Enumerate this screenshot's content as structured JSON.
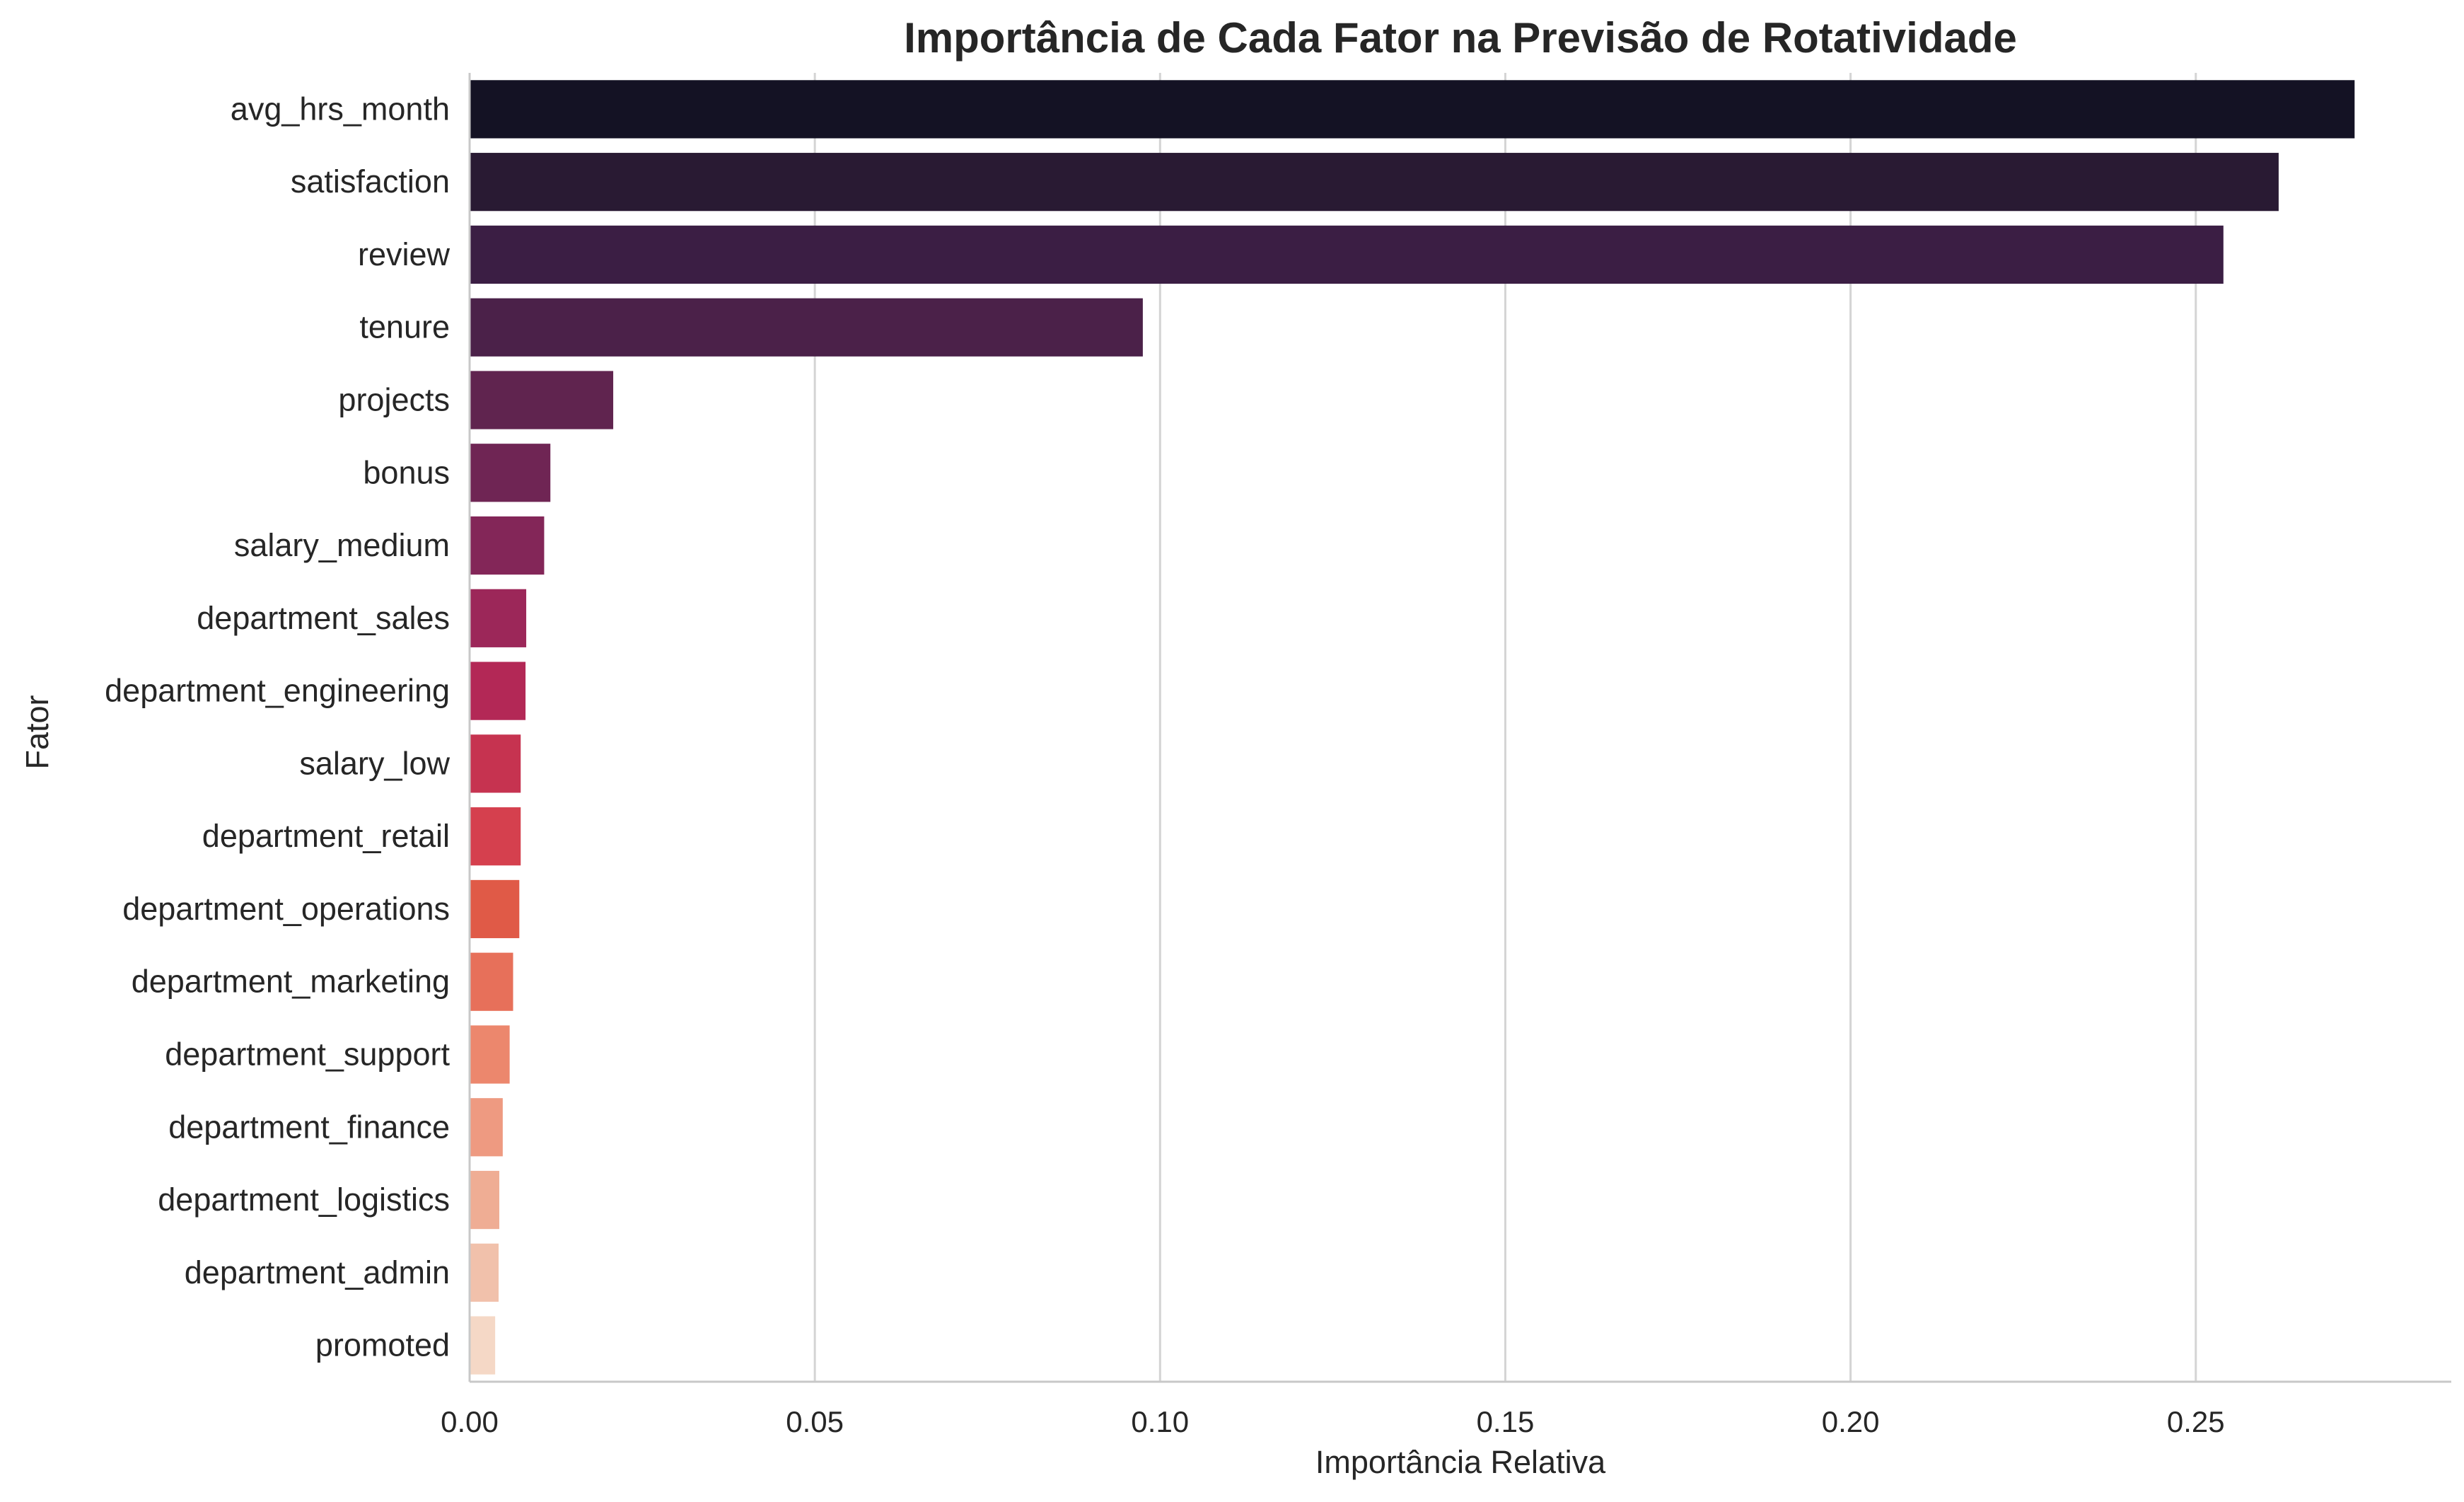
{
  "chart_data": {
    "type": "bar",
    "orientation": "horizontal",
    "title": "Importância de Cada Fator na Previsão de Rotatividade",
    "xlabel": "Importância Relativa",
    "ylabel": "Fator",
    "xlim": [
      0,
      0.287
    ],
    "xticks": [
      "0.00",
      "0.05",
      "0.10",
      "0.15",
      "0.20",
      "0.25"
    ],
    "xtick_values": [
      0,
      0.05,
      0.1,
      0.15,
      0.2,
      0.25
    ],
    "grid": "vertical",
    "palette": "rocket",
    "categories": [
      "avg_hrs_month",
      "satisfaction",
      "review",
      "tenure",
      "projects",
      "bonus",
      "salary_medium",
      "department_sales",
      "department_engineering",
      "salary_low",
      "department_retail",
      "department_operations",
      "department_marketing",
      "department_support",
      "department_finance",
      "department_logistics",
      "department_admin",
      "promoted"
    ],
    "values": [
      0.273,
      0.262,
      0.254,
      0.0975,
      0.0208,
      0.0117,
      0.0108,
      0.0082,
      0.0081,
      0.0074,
      0.0074,
      0.0072,
      0.0063,
      0.0058,
      0.0048,
      0.0043,
      0.0042,
      0.0037
    ],
    "colors": [
      "#141224",
      "#291a33",
      "#3b1e44",
      "#4b2149",
      "#60244f",
      "#6f2554",
      "#832658",
      "#9c2759",
      "#b32856",
      "#c63350",
      "#d5404e",
      "#e05a47",
      "#e7705a",
      "#ec876d",
      "#ee9a81",
      "#efad94",
      "#f1c1ab",
      "#f5d8c6"
    ]
  }
}
